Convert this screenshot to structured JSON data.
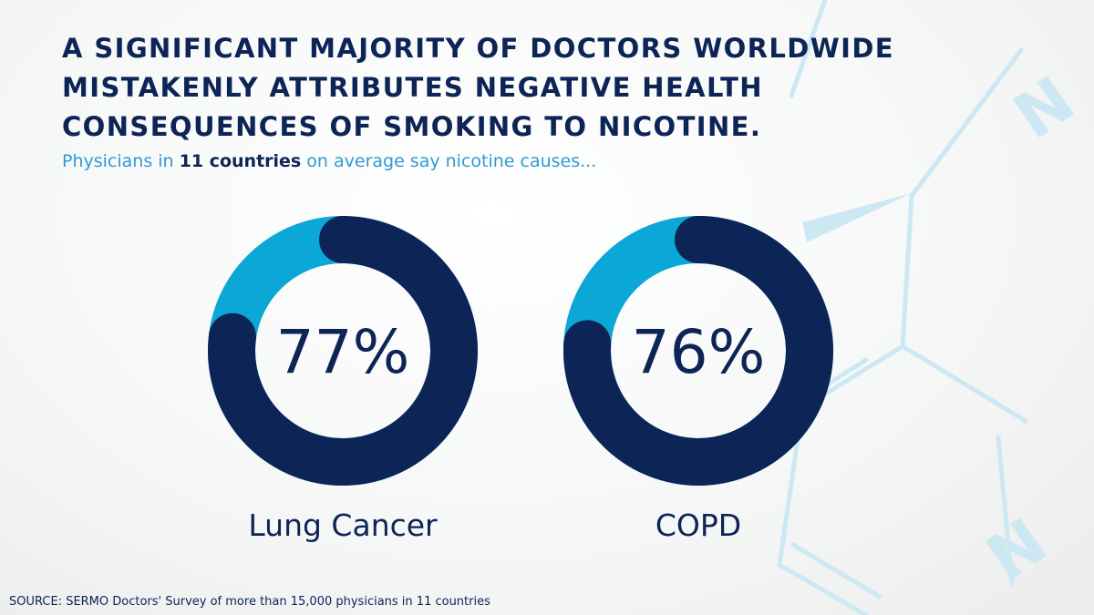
{
  "headline": {
    "line1": "A SIGNIFICANT MAJORITY OF DOCTORS WORLDWIDE",
    "line2": "MISTAKENLY ATTRIBUTES NEGATIVE HEALTH",
    "line3": "CONSEQUENCES OF SMOKING TO NICOTINE."
  },
  "subtitle": {
    "prefix": "Physicians in",
    "emphasis": "11 countries",
    "suffix": "on average say nicotine causes..."
  },
  "colors": {
    "primary": "#0d2456",
    "accent": "#0ba7d6",
    "subtitle": "#2f9ad4",
    "molecule": "#cde8f2"
  },
  "chart_data": {
    "type": "pie",
    "title": "",
    "unit": "%",
    "series": [
      {
        "category": "Lung Cancer",
        "value": 77,
        "label": "77%"
      },
      {
        "category": "COPD",
        "value": 76,
        "label": "76%"
      }
    ]
  },
  "source": "SOURCE: SERMO Doctors' Survey of more than 15,000 physicians in 11 countries"
}
